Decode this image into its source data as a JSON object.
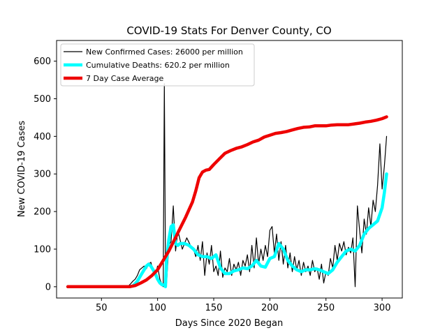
{
  "chart_data": {
    "type": "line",
    "title": "COVID-19 Stats For Denver County, CO",
    "xlabel": "Days Since 2020 Began",
    "ylabel": "New COVID-19 Cases",
    "xlim": [
      10,
      318
    ],
    "ylim": [
      -30,
      655
    ],
    "xticks": [
      50,
      100,
      150,
      200,
      250,
      300
    ],
    "yticks": [
      0,
      100,
      200,
      300,
      400,
      500,
      600
    ],
    "grid": false,
    "legend_position": "top-left",
    "series": [
      {
        "name": "New Confirmed Cases: 26000 per million",
        "color": "#000000",
        "x": [
          20,
          30,
          40,
          50,
          60,
          70,
          74,
          76,
          78,
          80,
          82,
          84,
          86,
          88,
          90,
          92,
          94,
          96,
          98,
          100,
          102,
          104,
          105,
          106,
          107,
          108,
          110,
          112,
          114,
          116,
          118,
          120,
          122,
          124,
          126,
          128,
          130,
          132,
          134,
          136,
          138,
          140,
          142,
          144,
          146,
          148,
          150,
          152,
          154,
          156,
          158,
          160,
          162,
          164,
          166,
          168,
          170,
          172,
          174,
          176,
          178,
          180,
          182,
          184,
          186,
          188,
          190,
          192,
          194,
          196,
          198,
          200,
          202,
          204,
          206,
          208,
          210,
          212,
          214,
          216,
          218,
          220,
          222,
          224,
          226,
          228,
          230,
          232,
          234,
          236,
          238,
          240,
          242,
          244,
          246,
          248,
          250,
          252,
          254,
          256,
          258,
          260,
          262,
          264,
          266,
          268,
          270,
          272,
          274,
          276,
          278,
          280,
          282,
          284,
          286,
          288,
          290,
          292,
          294,
          296,
          298,
          300,
          302,
          304
        ],
        "y": [
          0,
          0,
          0,
          0,
          0,
          0,
          2,
          8,
          15,
          20,
          30,
          45,
          50,
          55,
          48,
          60,
          65,
          40,
          30,
          55,
          20,
          5,
          0,
          540,
          60,
          10,
          110,
          120,
          215,
          95,
          150,
          125,
          100,
          115,
          130,
          118,
          105,
          100,
          80,
          110,
          70,
          120,
          30,
          90,
          60,
          110,
          40,
          55,
          30,
          95,
          25,
          50,
          40,
          75,
          30,
          60,
          45,
          65,
          30,
          70,
          55,
          85,
          40,
          110,
          50,
          130,
          60,
          100,
          70,
          110,
          80,
          150,
          160,
          90,
          140,
          70,
          120,
          60,
          110,
          50,
          90,
          40,
          80,
          45,
          70,
          30,
          65,
          40,
          55,
          30,
          70,
          40,
          50,
          20,
          60,
          10,
          40,
          30,
          75,
          50,
          110,
          70,
          115,
          95,
          120,
          85,
          105,
          90,
          130,
          0,
          215,
          150,
          90,
          180,
          140,
          210,
          160,
          230,
          200,
          270,
          380,
          260,
          320,
          400
        ]
      },
      {
        "name": "Cumulative Deaths: 620.2 per million",
        "color": "#00ffff",
        "x": [
          20,
          30,
          40,
          50,
          60,
          70,
          75,
          78,
          80,
          82,
          84,
          86,
          88,
          90,
          92,
          94,
          96,
          98,
          100,
          102,
          104,
          106,
          107,
          108,
          110,
          112,
          114,
          116,
          118,
          120,
          124,
          128,
          132,
          136,
          140,
          144,
          148,
          152,
          156,
          160,
          164,
          168,
          172,
          176,
          180,
          184,
          188,
          192,
          196,
          200,
          204,
          208,
          212,
          216,
          220,
          224,
          228,
          232,
          236,
          240,
          244,
          248,
          252,
          256,
          260,
          264,
          268,
          272,
          276,
          280,
          284,
          288,
          292,
          296,
          300,
          302,
          304
        ],
        "y": [
          0,
          0,
          0,
          0,
          0,
          0,
          0,
          2,
          8,
          15,
          25,
          35,
          45,
          55,
          60,
          55,
          45,
          35,
          20,
          10,
          5,
          5,
          0,
          70,
          125,
          160,
          165,
          115,
          110,
          115,
          115,
          110,
          100,
          85,
          80,
          80,
          75,
          85,
          50,
          35,
          35,
          42,
          45,
          50,
          48,
          55,
          70,
          55,
          52,
          75,
          80,
          115,
          100,
          70,
          55,
          45,
          40,
          45,
          45,
          48,
          45,
          40,
          35,
          45,
          65,
          80,
          95,
          100,
          95,
          110,
          140,
          155,
          165,
          175,
          210,
          250,
          300
        ]
      },
      {
        "name": "7 Day Case Average",
        "color": "#ee0000",
        "x": [
          20,
          40,
          60,
          75,
          80,
          85,
          90,
          95,
          100,
          105,
          110,
          115,
          120,
          125,
          128,
          131,
          134,
          137,
          140,
          143,
          146,
          150,
          155,
          160,
          165,
          170,
          175,
          180,
          185,
          190,
          195,
          200,
          205,
          210,
          215,
          220,
          225,
          230,
          235,
          240,
          245,
          250,
          255,
          260,
          265,
          270,
          275,
          280,
          285,
          290,
          295,
          300,
          304
        ],
        "y": [
          0,
          0,
          0,
          0,
          3,
          10,
          18,
          30,
          45,
          70,
          95,
          125,
          155,
          185,
          205,
          225,
          255,
          290,
          305,
          310,
          312,
          325,
          340,
          355,
          362,
          368,
          372,
          378,
          385,
          390,
          398,
          403,
          408,
          410,
          413,
          417,
          421,
          424,
          425,
          428,
          428,
          428,
          430,
          431,
          431,
          431,
          433,
          435,
          438,
          440,
          443,
          447,
          452
        ]
      }
    ]
  }
}
